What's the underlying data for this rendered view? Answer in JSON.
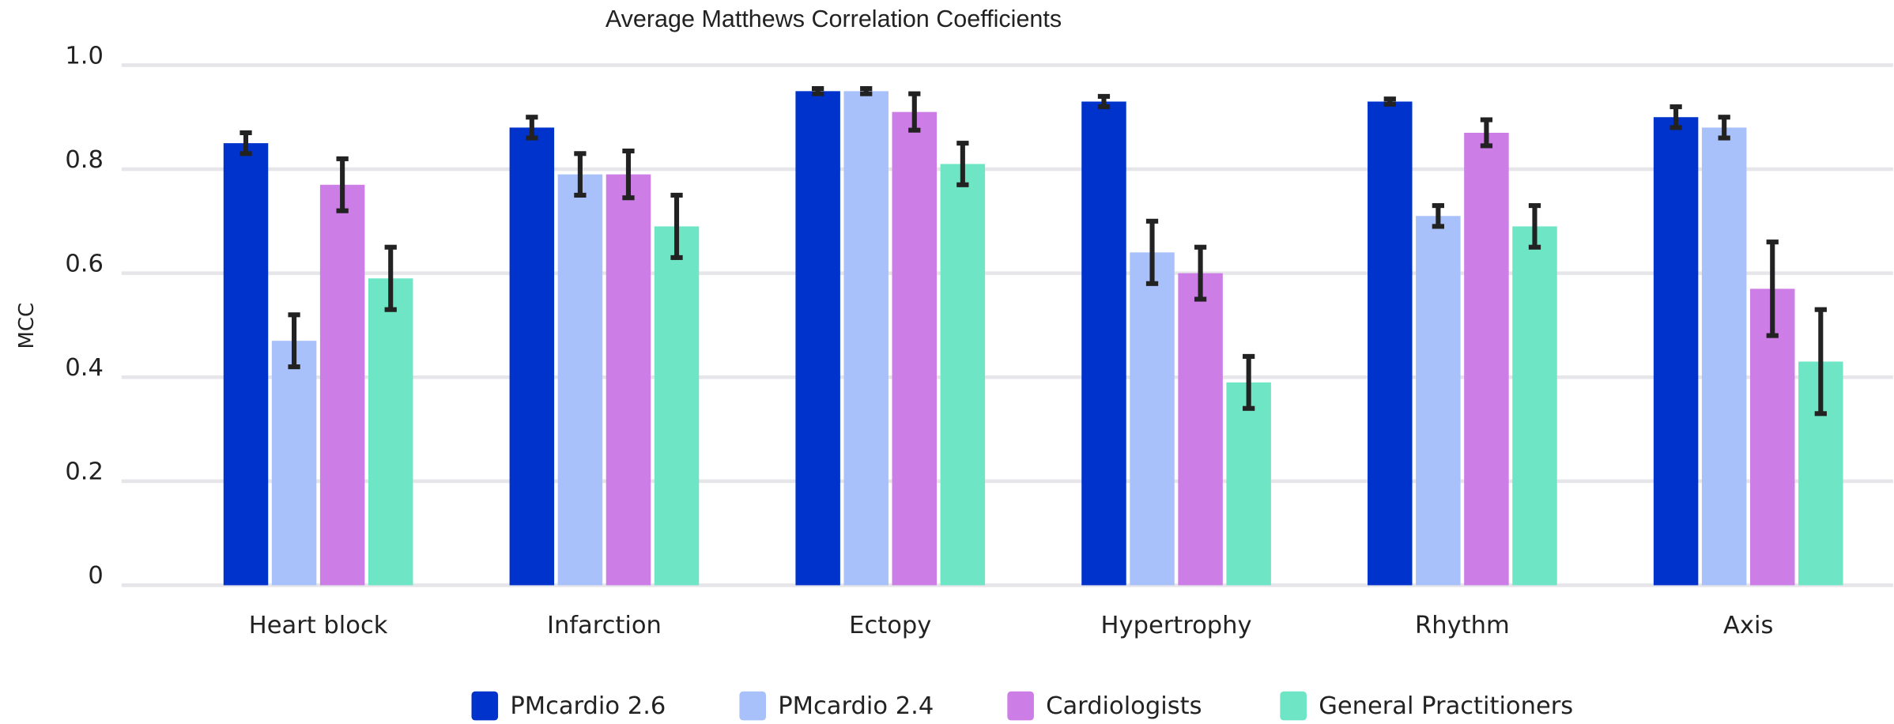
{
  "chart_data": {
    "type": "bar",
    "title": "Average Matthews Correlation Coefficients",
    "y_label": "MCC",
    "categories": [
      "Heart block",
      "Infarction",
      "Ectopy",
      "Hypertrophy",
      "Rhythm",
      "Axis"
    ],
    "series": [
      {
        "name": "PMcardio 2.6",
        "color": "#0033cc",
        "values": [
          0.85,
          0.88,
          0.95,
          0.93,
          0.93,
          0.9
        ],
        "errors": [
          0.02,
          0.02,
          0.005,
          0.01,
          0.005,
          0.02
        ]
      },
      {
        "name": "PMcardio 2.4",
        "color": "#a9c1fa",
        "values": [
          0.47,
          0.79,
          0.95,
          0.64,
          0.71,
          0.88
        ],
        "errors": [
          0.05,
          0.04,
          0.005,
          0.06,
          0.02,
          0.02
        ]
      },
      {
        "name": "Cardiologists",
        "color": "#cc7de6",
        "values": [
          0.77,
          0.79,
          0.91,
          0.6,
          0.87,
          0.57
        ],
        "errors": [
          0.05,
          0.045,
          0.035,
          0.05,
          0.025,
          0.09
        ]
      },
      {
        "name": "General Practitioners",
        "color": "#6ee6c6",
        "values": [
          0.59,
          0.69,
          0.81,
          0.39,
          0.69,
          0.43
        ],
        "errors": [
          0.06,
          0.06,
          0.04,
          0.05,
          0.04,
          0.1
        ]
      }
    ],
    "ylim": [
      0,
      1
    ],
    "yticks": [
      0,
      0.2,
      0.4,
      0.6,
      0.8,
      {
        "value": 1,
        "label": "1.0"
      }
    ],
    "grid": true
  }
}
